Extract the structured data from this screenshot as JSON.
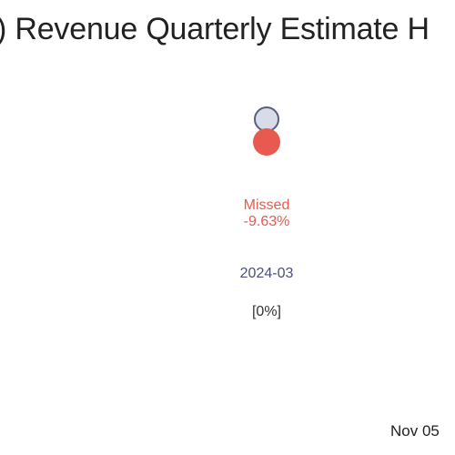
{
  "chart_data": {
    "type": "scatter",
    "title": ") Revenue Quarterly Estimate H",
    "categories": [
      "2024-03"
    ],
    "series": [
      {
        "key": "estimate",
        "values": [
          1.0
        ],
        "color": "#d8dce8",
        "stroke": "#5a607a"
      },
      {
        "key": "actual",
        "values": [
          0.9037
        ],
        "color": "#e8594f"
      }
    ],
    "annotations": [
      {
        "category": "2024-03",
        "result": "Missed",
        "surprise": "-9.63%",
        "change": "[0%]"
      }
    ],
    "date_label": "Nov 05",
    "grid": false
  }
}
